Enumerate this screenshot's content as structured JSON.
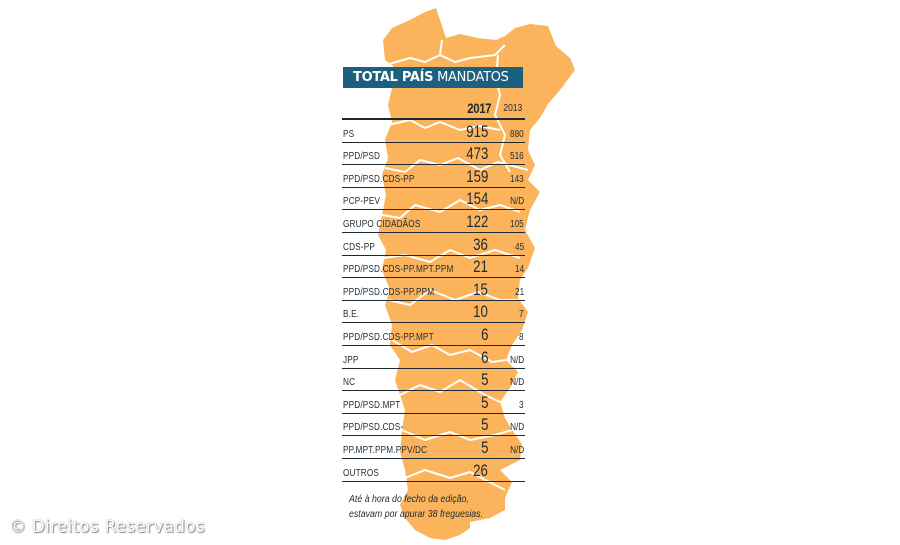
{
  "colors": {
    "map_fill": "#fbb45c",
    "map_border": "#ffffff",
    "banner_bg": "#1d5f7e",
    "text": "#1e2a33"
  },
  "header": {
    "title_bold": "TOTAL PAÍS",
    "title_light": " MANDATOS"
  },
  "table": {
    "columns": [
      "2017",
      "2013"
    ],
    "rows": [
      {
        "party": "PS",
        "y2017": "915",
        "y2013": "880"
      },
      {
        "party": "PPD/PSD",
        "y2017": "473",
        "y2013": "516"
      },
      {
        "party": "PPD/PSD.CDS-PP",
        "y2017": "159",
        "y2013": "143"
      },
      {
        "party": "PCP-PEV",
        "y2017": "154",
        "y2013": "N/D"
      },
      {
        "party": "GRUPO CIDADÃOS",
        "y2017": "122",
        "y2013": "105"
      },
      {
        "party": "CDS-PP",
        "y2017": "36",
        "y2013": "45"
      },
      {
        "party": "PPD/PSD.CDS-PP.MPT.PPM",
        "y2017": "21",
        "y2013": "14"
      },
      {
        "party": "PPD/PSD.CDS-PP.PPM",
        "y2017": "15",
        "y2013": "21"
      },
      {
        "party": "B.E.",
        "y2017": "10",
        "y2013": "7"
      },
      {
        "party": "PPD/PSD.CDS-PP.MPT",
        "y2017": "6",
        "y2013": "8"
      },
      {
        "party": "JPP",
        "y2017": "6",
        "y2013": "N/D"
      },
      {
        "party": "NC",
        "y2017": "5",
        "y2013": "N/D"
      },
      {
        "party": "PPD/PSD.MPT",
        "y2017": "5",
        "y2013": "3"
      },
      {
        "party": "PPD/PSD.CDS-",
        "y2017": "5",
        "y2013": "N/D"
      },
      {
        "party": "PP.MPT.PPM.PPV/DC",
        "y2017": "5",
        "y2013": "N/D"
      },
      {
        "party": "OUTROS",
        "y2017": "26",
        "y2013": ""
      }
    ]
  },
  "footnote": {
    "line1": "Até à hora do fecho da edição,",
    "line2": "estavam por apurar 38 freguesias."
  },
  "copyright": "© Direitos Reservados"
}
